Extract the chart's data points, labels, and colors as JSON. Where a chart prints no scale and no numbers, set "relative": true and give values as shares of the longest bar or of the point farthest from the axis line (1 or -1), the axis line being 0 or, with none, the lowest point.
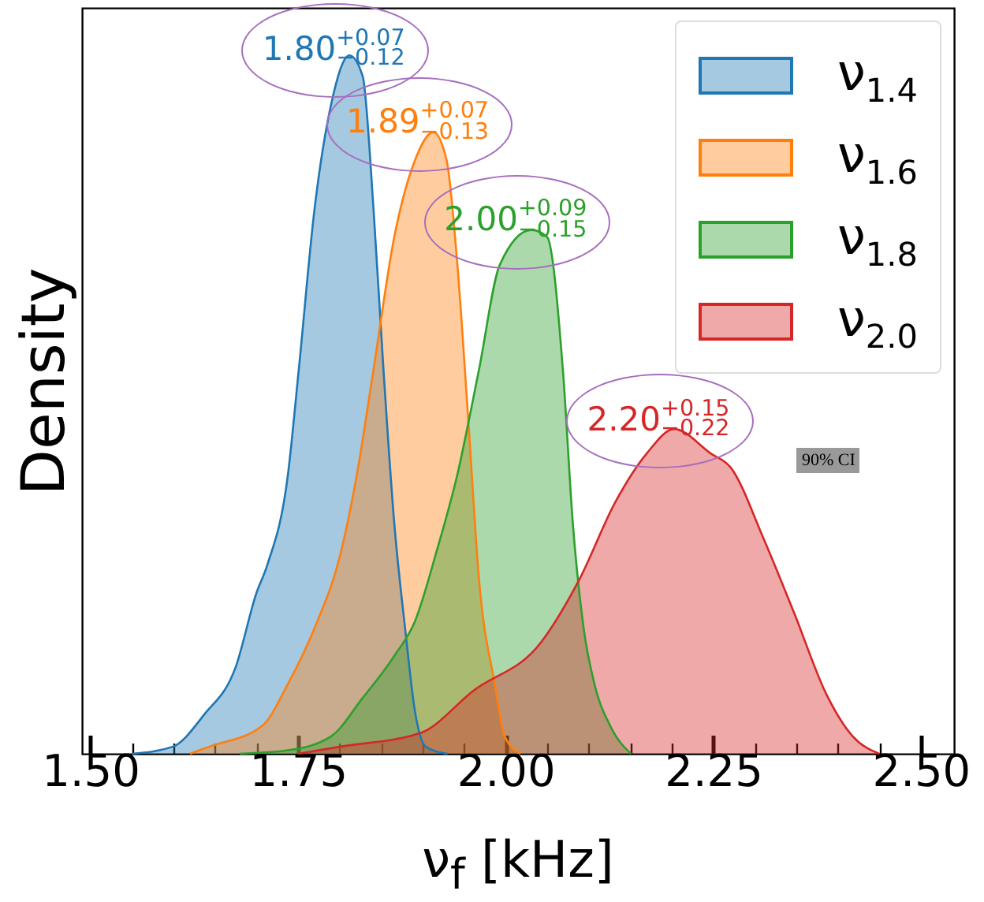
{
  "chart_data": {
    "type": "area",
    "xlabel": "ν$_{f}$ [kHz]",
    "ylabel": "Density",
    "relative": true,
    "legend": "top right",
    "xlim": [
      1.49,
      2.54
    ],
    "xticks": [
      {
        "value": 1.5,
        "label": "1.50"
      },
      {
        "value": 1.55,
        "label": null
      },
      {
        "value": 1.6,
        "label": null
      },
      {
        "value": 1.65,
        "label": null
      },
      {
        "value": 1.7,
        "label": null
      },
      {
        "value": 1.75,
        "label": "1.75"
      },
      {
        "value": 1.8,
        "label": null
      },
      {
        "value": 1.85,
        "label": null
      },
      {
        "value": 1.9,
        "label": null
      },
      {
        "value": 1.95,
        "label": null
      },
      {
        "value": 2.0,
        "label": "2.00"
      },
      {
        "value": 2.05,
        "label": null
      },
      {
        "value": 2.1,
        "label": null
      },
      {
        "value": 2.15,
        "label": null
      },
      {
        "value": 2.2,
        "label": null
      },
      {
        "value": 2.25,
        "label": "2.25"
      },
      {
        "value": 2.3,
        "label": null
      },
      {
        "value": 2.35,
        "label": null
      },
      {
        "value": 2.4,
        "label": null
      },
      {
        "value": 2.45,
        "label": null
      },
      {
        "value": 2.5,
        "label": "2.50"
      }
    ],
    "series": [
      {
        "name": "ν$_{1.4}$",
        "color": "#1f77b4",
        "x": [
          1.55,
          1.599,
          1.637,
          1.675,
          1.7,
          1.713,
          1.738,
          1.751,
          1.77,
          1.79,
          1.812,
          1.828,
          1.841,
          1.853,
          1.866,
          1.879,
          1.891,
          1.904,
          1.93
        ],
        "values": [
          0,
          0.01,
          0.056,
          0.124,
          0.23,
          0.27,
          0.4,
          0.55,
          0.78,
          0.93,
          1.0,
          0.97,
          0.78,
          0.55,
          0.33,
          0.18,
          0.06,
          0.01,
          0
        ]
      },
      {
        "name": "ν$_{1.6}$",
        "color": "#ff7f0e",
        "x": [
          1.62,
          1.643,
          1.707,
          1.738,
          1.77,
          1.802,
          1.821,
          1.841,
          1.866,
          1.891,
          1.913,
          1.929,
          1.942,
          1.955,
          1.968,
          1.987,
          1.999,
          2.018
        ],
        "values": [
          0,
          0.01,
          0.04,
          0.1,
          0.18,
          0.29,
          0.4,
          0.55,
          0.74,
          0.85,
          0.89,
          0.85,
          0.7,
          0.48,
          0.25,
          0.1,
          0.025,
          0
        ]
      },
      {
        "name": "ν$_{1.8}$",
        "color": "#2ca02c",
        "x": [
          1.68,
          1.738,
          1.79,
          1.828,
          1.866,
          1.891,
          1.917,
          1.942,
          1.968,
          1.993,
          2.031,
          2.05,
          2.069,
          2.081,
          2.094,
          2.107,
          2.126,
          2.151
        ],
        "values": [
          0,
          0.005,
          0.025,
          0.08,
          0.14,
          0.19,
          0.29,
          0.4,
          0.55,
          0.7,
          0.75,
          0.74,
          0.55,
          0.33,
          0.18,
          0.1,
          0.04,
          0
        ]
      },
      {
        "name": "ν$_{2.0}$",
        "color": "#d62728",
        "x": [
          1.75,
          1.8,
          1.898,
          1.961,
          2.043,
          2.089,
          2.132,
          2.17,
          2.203,
          2.247,
          2.271,
          2.31,
          2.348,
          2.386,
          2.418,
          2.45
        ],
        "values": [
          0,
          0.01,
          0.03,
          0.09,
          0.16,
          0.25,
          0.36,
          0.43,
          0.465,
          0.43,
          0.41,
          0.31,
          0.2,
          0.086,
          0.025,
          0
        ]
      }
    ],
    "annotations": [
      {
        "text": "1.80$^{+0.07}$$_{−0.12}$",
        "x": 1.812,
        "y": 1.0
      },
      {
        "text": "1.89$^{+0.07}$$_{−0.13}$",
        "x": 1.913,
        "y": 0.89
      },
      {
        "text": "2.00$^{+0.09}$$_{−0.15}$",
        "x": 2.031,
        "y": 0.75
      },
      {
        "text": "2.20$^{+0.15}$$_{−0.22}$",
        "x": 2.203,
        "y": 0.465
      },
      "90% CI"
    ]
  }
}
